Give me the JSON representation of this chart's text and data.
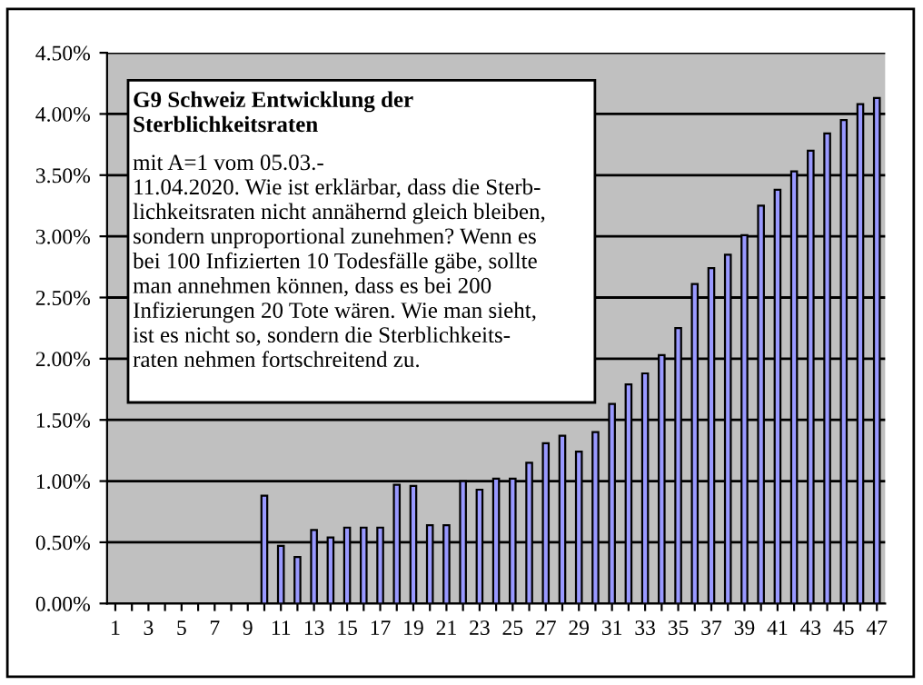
{
  "chart_data": {
    "type": "bar",
    "categories": [
      "1",
      null,
      "3",
      null,
      "5",
      null,
      "7",
      null,
      "9",
      null,
      "11",
      null,
      "13",
      null,
      "15",
      null,
      "17",
      null,
      "19",
      null,
      "21",
      null,
      "23",
      null,
      "25",
      null,
      "27",
      null,
      "29",
      null,
      "31",
      null,
      "33",
      null,
      "35",
      null,
      "37",
      null,
      "39",
      null,
      "41",
      null,
      "43",
      null,
      "45",
      null,
      "47"
    ],
    "values": [
      null,
      null,
      null,
      null,
      null,
      null,
      null,
      null,
      null,
      0.88,
      0.47,
      0.38,
      0.6,
      0.54,
      0.62,
      0.62,
      0.62,
      0.97,
      0.96,
      0.64,
      0.64,
      1.0,
      0.93,
      1.02,
      1.02,
      1.15,
      1.31,
      1.37,
      1.24,
      1.4,
      1.63,
      1.79,
      1.88,
      2.03,
      2.25,
      2.61,
      2.74,
      2.85,
      3.01,
      3.25,
      3.38,
      3.53,
      3.7,
      3.84,
      3.95,
      4.08,
      4.13
    ],
    "color": "#9999ff",
    "ylim": [
      0,
      4.5
    ],
    "yticks": [
      {
        "value": 0,
        "label": "0.00%"
      },
      {
        "value": 0.5,
        "label": "0.50%"
      },
      {
        "value": 1,
        "label": "1.00%"
      },
      {
        "value": 1.5,
        "label": "1.50%"
      },
      {
        "value": 2,
        "label": "2.00%"
      },
      {
        "value": 2.5,
        "label": "2.50%"
      },
      {
        "value": 3,
        "label": "3.00%"
      },
      {
        "value": 3.5,
        "label": "3.50%"
      },
      {
        "value": 4,
        "label": "4.00%"
      },
      {
        "value": 4.5,
        "label": "4.50%"
      }
    ],
    "grid": "y",
    "legend": false,
    "annotations": [
      "G9 Schweiz Entwicklung der\nSterblichkeitsraten",
      "mit A=1 vom 05.03.-\n11.04.2020. Wie ist erklärbar, dass die Sterb-\nlichkeitsraten nicht annähernd gleich bleiben,\nsondern unproportional zunehmen? Wenn es\nbei 100 Infizierten 10 Todesfälle gäbe, sollte\nman annehmen können, dass es bei 200\nInfizierungen 20 Tote wären. Wie man sieht,\nist es nicht so, sondern die Sterblichkeits-\nraten nehmen fortschreitend zu."
    ]
  }
}
